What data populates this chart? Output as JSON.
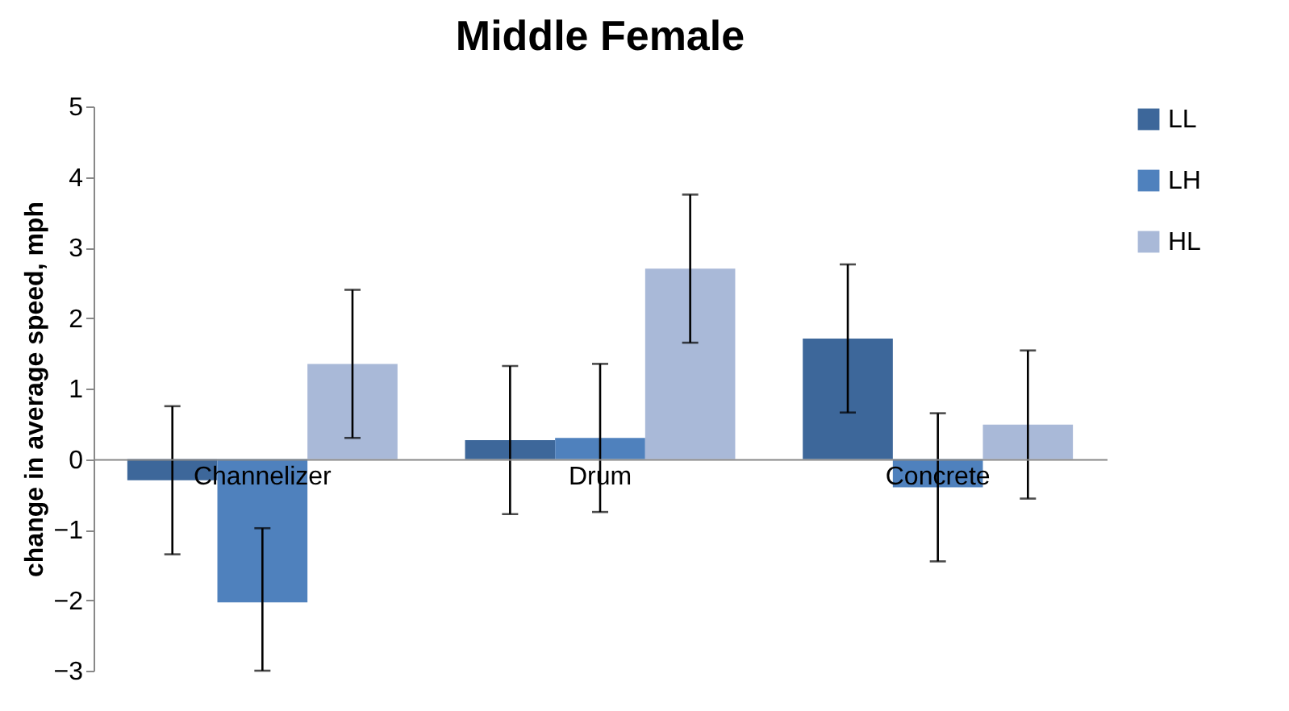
{
  "chart_data": {
    "type": "bar",
    "title": "Middle Female",
    "ylabel": "change in average speed, mph",
    "categories": [
      "Channelizer",
      "Drum",
      "Concrete"
    ],
    "series": [
      {
        "name": "LL",
        "color": "#3d679a",
        "values": [
          -0.3,
          0.27,
          1.71
        ],
        "errors": [
          1.05,
          1.05,
          1.05
        ]
      },
      {
        "name": "LH",
        "color": "#4f81bd",
        "values": [
          -2.03,
          0.3,
          -0.4
        ],
        "errors": [
          [
            -3,
            -0.98
          ],
          1.05,
          1.05
        ]
      },
      {
        "name": "HL",
        "color": "#a9b9d8",
        "values": [
          1.35,
          2.7,
          0.49
        ],
        "errors": [
          1.05,
          1.05,
          1.05
        ]
      }
    ],
    "ylim": [
      -3,
      5
    ],
    "yticks": [
      -3,
      -2,
      -1,
      0,
      1,
      2,
      3,
      4,
      5
    ],
    "grid": false,
    "legend": "right"
  }
}
